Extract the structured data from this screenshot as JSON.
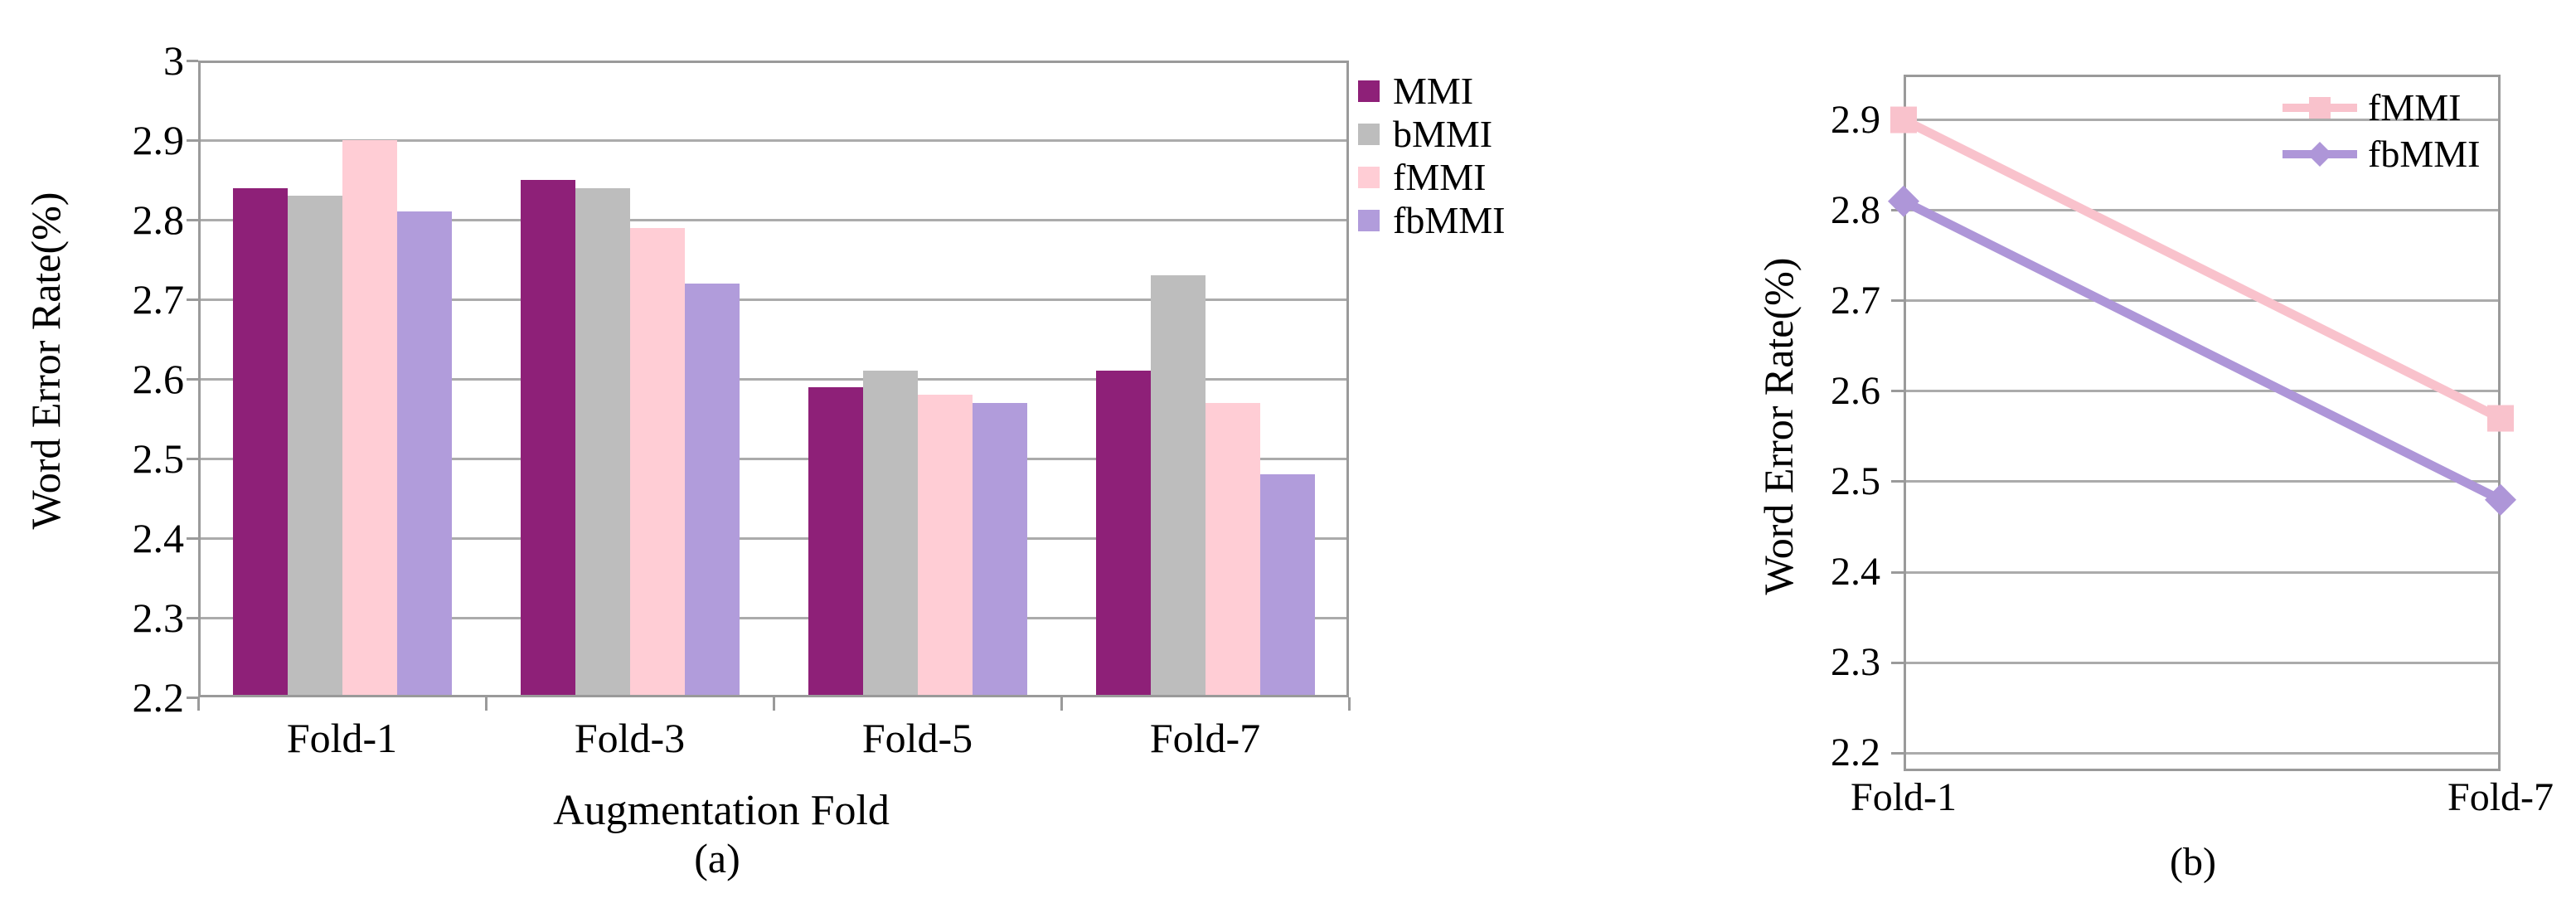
{
  "chart_data": [
    {
      "id": "a",
      "type": "bar",
      "title": "",
      "ylabel": "Word Error Rate(%)",
      "xlabel": "Augmentation Fold",
      "caption": "(a)",
      "categories": [
        "Fold-1",
        "Fold-3",
        "Fold-5",
        "Fold-7"
      ],
      "series": [
        {
          "name": "MMI",
          "color": "#8E2078",
          "values": [
            2.84,
            2.85,
            2.59,
            2.61
          ]
        },
        {
          "name": "bMMI",
          "color": "#BDBDBD",
          "values": [
            2.83,
            2.84,
            2.61,
            2.73
          ]
        },
        {
          "name": "fMMI",
          "color": "#FFCDD5",
          "values": [
            2.9,
            2.79,
            2.58,
            2.57
          ]
        },
        {
          "name": "fbMMI",
          "color": "#B19CDB",
          "values": [
            2.81,
            2.72,
            2.57,
            2.48
          ]
        }
      ],
      "ylim": [
        2.2,
        3.0
      ],
      "yticks": [
        "3",
        "2.9",
        "2.8",
        "2.7",
        "2.6",
        "2.5",
        "2.4",
        "2.3",
        "2.2"
      ],
      "grid": true,
      "legend_position": "right-outside"
    },
    {
      "id": "b",
      "type": "line",
      "title": "",
      "ylabel": "Word Error Rate(%)",
      "xlabel": "",
      "caption": "(b)",
      "categories": [
        "Fold-1",
        "Fold-7"
      ],
      "series": [
        {
          "name": "fMMI",
          "color": "#F9C2CC",
          "marker": "square",
          "values": [
            2.9,
            2.57
          ]
        },
        {
          "name": "fbMMI",
          "color": "#AE96D8",
          "marker": "diamond",
          "values": [
            2.81,
            2.48
          ]
        }
      ],
      "ylim": [
        2.18,
        2.95
      ],
      "yticks": [
        "2.9",
        "2.8",
        "2.7",
        "2.6",
        "2.5",
        "2.4",
        "2.3",
        "2.2"
      ],
      "grid": true,
      "legend_position": "top-right-inside"
    }
  ],
  "colors": {
    "grid": "#ABABAB",
    "axis": "#9A9A9A",
    "text": "#000000",
    "background": "#FFFFFF"
  }
}
